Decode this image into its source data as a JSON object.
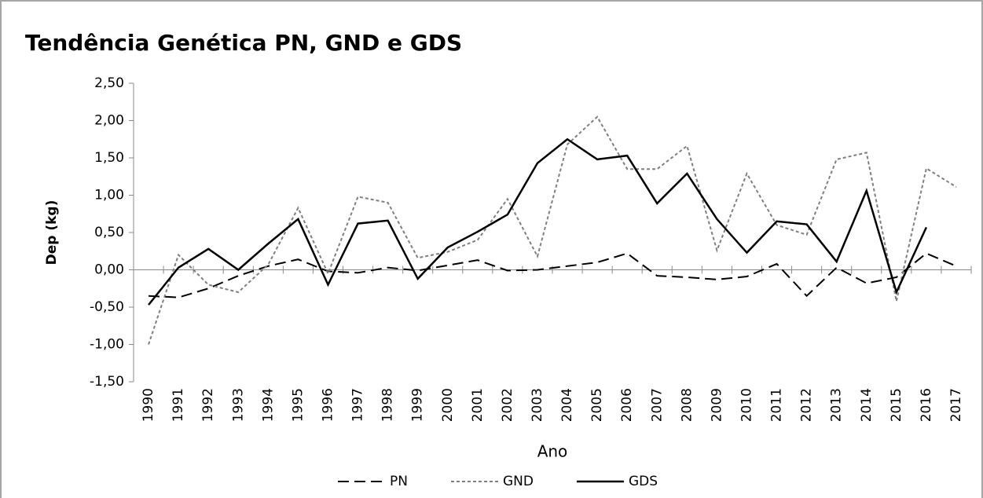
{
  "chart_data": {
    "type": "line",
    "title": "Tendência Genética PN, GND e GDS",
    "xlabel": "Ano",
    "ylabel": "Dep (kg)",
    "categories": [
      "1990",
      "1991",
      "1992",
      "1993",
      "1994",
      "1995",
      "1996",
      "1997",
      "1998",
      "1999",
      "2000",
      "2001",
      "2002",
      "2003",
      "2004",
      "2005",
      "2006",
      "2007",
      "2008",
      "2009",
      "2010",
      "2011",
      "2012",
      "2013",
      "2014",
      "2015",
      "2016",
      "2017"
    ],
    "series": [
      {
        "name": "PN",
        "color": "#000000",
        "dash": "dashed",
        "values": [
          -0.35,
          -0.37,
          -0.25,
          -0.08,
          0.05,
          0.14,
          -0.02,
          -0.04,
          0.03,
          -0.01,
          0.06,
          0.13,
          -0.01,
          0.0,
          0.05,
          0.1,
          0.22,
          -0.08,
          -0.1,
          -0.13,
          -0.09,
          0.08,
          -0.35,
          0.03,
          -0.18,
          -0.1,
          0.22,
          0.05
        ]
      },
      {
        "name": "GND",
        "color": "#7f7f7f",
        "dash": "dotted",
        "values": [
          -1.0,
          0.2,
          -0.2,
          -0.3,
          0.07,
          0.83,
          -0.05,
          0.98,
          0.9,
          0.16,
          0.24,
          0.4,
          0.95,
          0.18,
          1.68,
          2.05,
          1.35,
          1.35,
          1.66,
          0.26,
          1.29,
          0.6,
          0.47,
          1.48,
          1.57,
          -0.42,
          1.36,
          1.11
        ]
      },
      {
        "name": "GDS",
        "color": "#000000",
        "dash": "solid",
        "values": [
          -0.47,
          0.03,
          0.28,
          0.0,
          0.35,
          0.68,
          -0.2,
          0.62,
          0.66,
          -0.12,
          0.3,
          0.51,
          0.74,
          1.43,
          1.75,
          1.48,
          1.53,
          0.89,
          1.29,
          0.68,
          0.23,
          0.65,
          0.61,
          0.11,
          1.06,
          -0.3,
          0.57,
          null
        ]
      }
    ],
    "ylim": [
      -1.5,
      2.5
    ],
    "yticks": [
      {
        "value": -1.5,
        "label": "-1,50"
      },
      {
        "value": -1,
        "label": "-1,00"
      },
      {
        "value": -0.5,
        "label": "-0,50"
      },
      {
        "value": 0,
        "label": "0,00"
      },
      {
        "value": 0.5,
        "label": "0,50"
      },
      {
        "value": 1,
        "label": "1,00"
      },
      {
        "value": 1.5,
        "label": "1,50"
      },
      {
        "value": 2,
        "label": "2,00"
      },
      {
        "value": 2.5,
        "label": "2,50"
      }
    ],
    "grid": false,
    "legend": "bottom"
  }
}
